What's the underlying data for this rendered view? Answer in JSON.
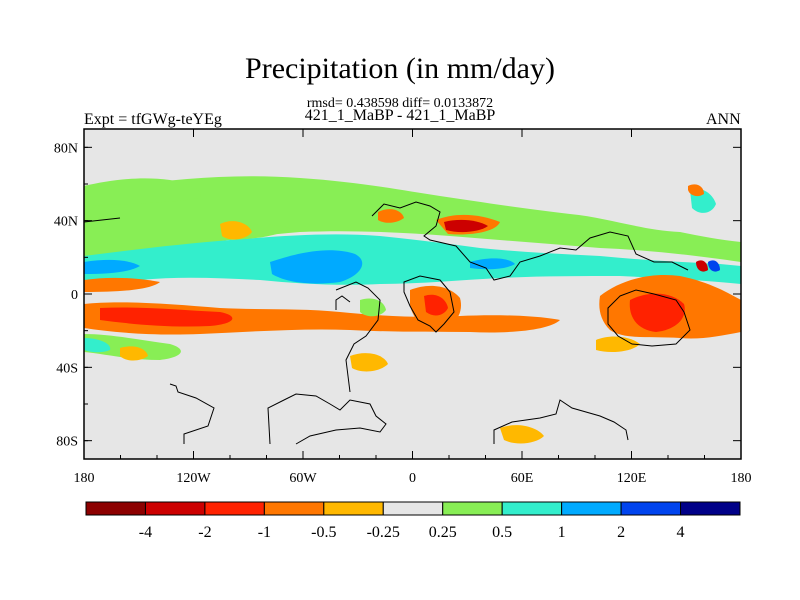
{
  "chart_data": {
    "type": "heatmap",
    "title": "Precipitation (in mm/day)",
    "subtitle": "rmsd= 0.438598  diff= 0.0133872",
    "case_label": "421_1_MaBP - 421_1_MaBP",
    "left_label": "Expt = tfGWg-teYEg",
    "right_label": "ANN",
    "x_ticks": [
      "180",
      "120W",
      "60W",
      "0",
      "60E",
      "120E",
      "180"
    ],
    "y_ticks": [
      "80N",
      "40N",
      "0",
      "40S",
      "80S"
    ],
    "x_range": [
      -180,
      180
    ],
    "y_range": [
      -90,
      90
    ],
    "colorbar": {
      "levels": [
        "-4",
        "-2",
        "-1",
        "-0.5",
        "-0.25",
        "0.25",
        "0.5",
        "1",
        "2",
        "4"
      ],
      "colors": [
        "#8c0000",
        "#cc0000",
        "#ff2200",
        "#ff7700",
        "#ffb800",
        "#e6e6e6",
        "#88ee55",
        "#33eecc",
        "#00aaff",
        "#0044ee",
        "#000088"
      ]
    }
  }
}
